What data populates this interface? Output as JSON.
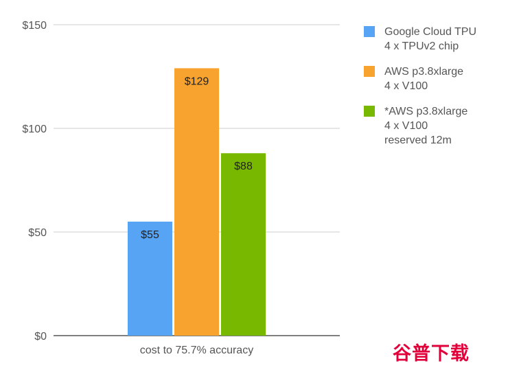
{
  "chart_data": {
    "type": "bar",
    "categories": [
      "cost to 75.7% accuracy"
    ],
    "series": [
      {
        "name": "Google Cloud TPU\n4 x TPUv2 chip",
        "values": [
          55
        ],
        "color": "#57a4f4",
        "data_label": "$55"
      },
      {
        "name": "AWS p3.8xlarge\n4 x V100",
        "values": [
          129
        ],
        "color": "#f8a230",
        "data_label": "$129"
      },
      {
        "name": "*AWS p3.8xlarge\n 4 x V100\nreserved 12m",
        "values": [
          88
        ],
        "color": "#79b800",
        "data_label": "$88"
      }
    ],
    "yticks": [
      "$0",
      "$50",
      "$100",
      "$150"
    ],
    "ytick_values": [
      0,
      50,
      100,
      150
    ],
    "ylim": [
      0,
      150
    ],
    "grid": true,
    "legend_position": "right",
    "title": "",
    "xlabel": "",
    "ylabel": ""
  },
  "watermark": "谷普下载"
}
